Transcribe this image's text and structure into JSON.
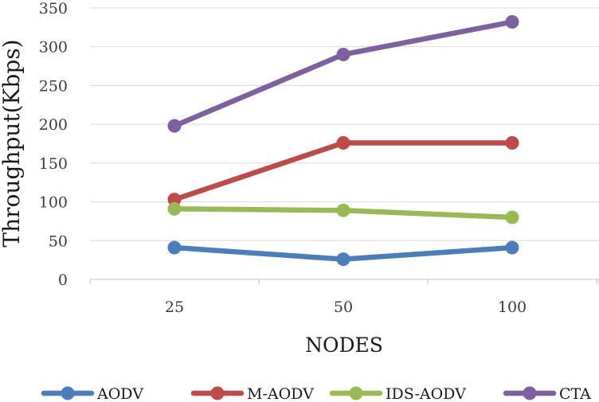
{
  "chart_data": {
    "type": "line",
    "title": "",
    "xlabel": "NODES",
    "ylabel": "Throughput(Kbps)",
    "categories": [
      "25",
      "50",
      "100"
    ],
    "ylim": [
      0,
      350
    ],
    "yticks": [
      0,
      50,
      100,
      150,
      200,
      250,
      300,
      350
    ],
    "grid": true,
    "legend": "bottom",
    "series": [
      {
        "name": "AODV",
        "color": "#4a7ebb",
        "values": [
          41,
          26,
          41
        ]
      },
      {
        "name": "M-AODV",
        "color": "#be4b48",
        "values": [
          103,
          176,
          176
        ]
      },
      {
        "name": "IDS-AODV",
        "color": "#98b954",
        "values": [
          91,
          89,
          80
        ]
      },
      {
        "name": "CTA",
        "color": "#7d60a0",
        "values": [
          198,
          290,
          332
        ]
      }
    ]
  }
}
